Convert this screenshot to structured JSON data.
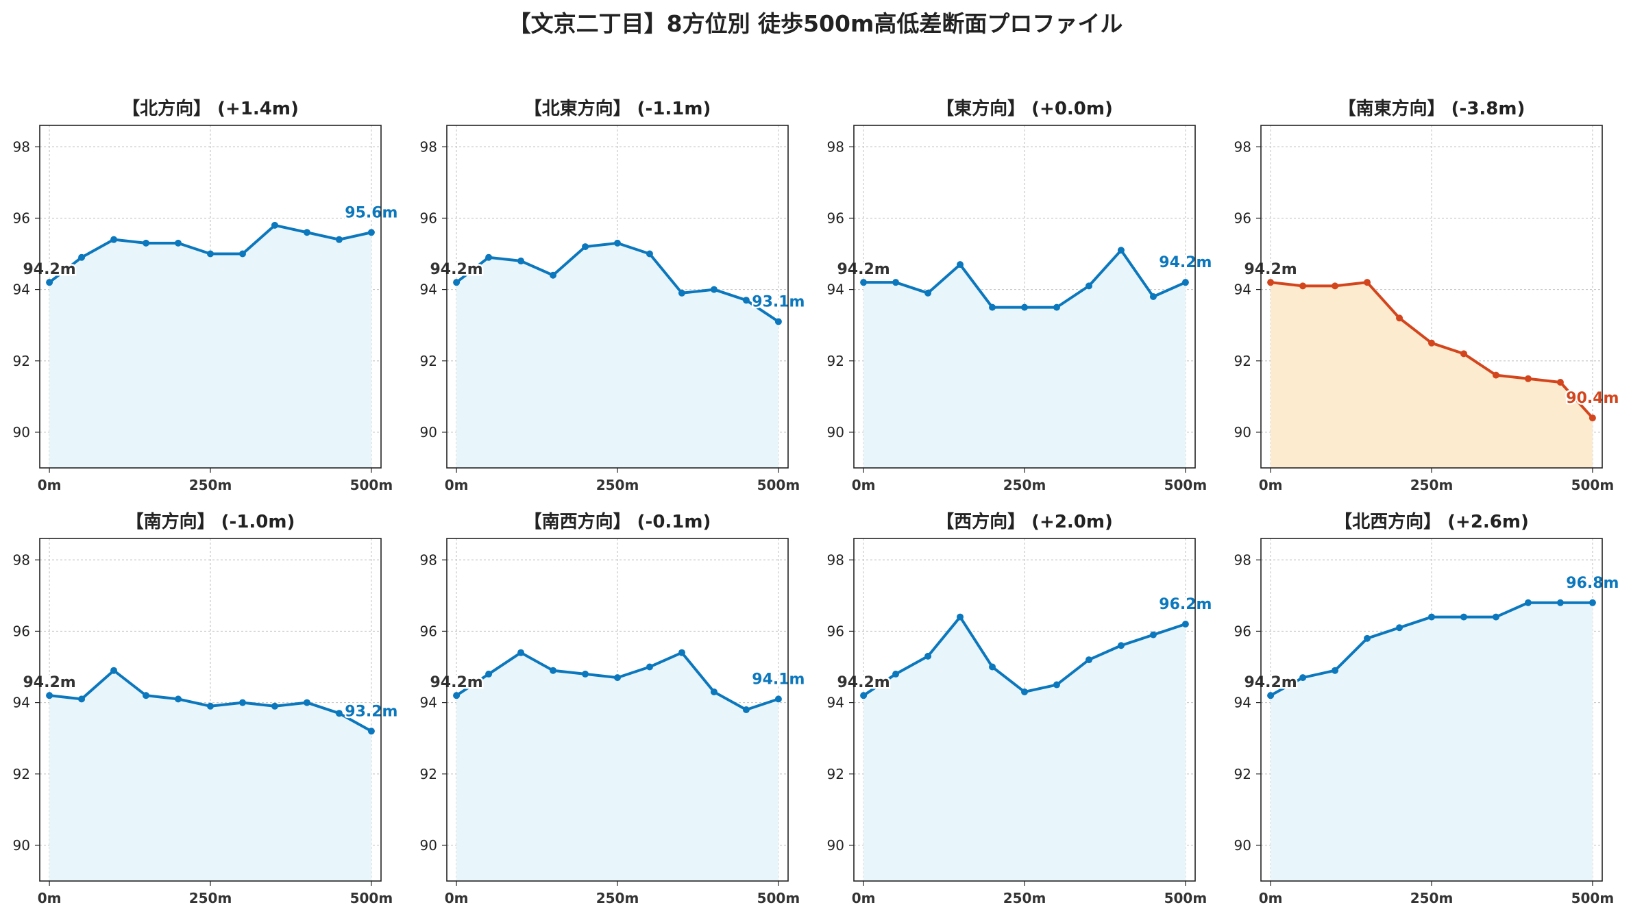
{
  "figure": {
    "title": "【文京二丁目】8方位別 徒歩500m高低差断面プロファイル"
  },
  "colors": {
    "rise_line": "#0b77bd",
    "rise_fill": "#e8f6fb",
    "fall_line": "#d3451c",
    "fall_fill": "#fdebd0",
    "start_label": "#333333",
    "grid": "#c9c9c9"
  },
  "chart_data": [
    {
      "type": "area",
      "title": "【北方向】 (+1.4m)",
      "x": [
        0,
        50,
        100,
        150,
        200,
        250,
        300,
        350,
        400,
        450,
        500
      ],
      "values": [
        94.2,
        94.9,
        95.4,
        95.3,
        95.3,
        95.0,
        95.0,
        95.8,
        95.6,
        95.4,
        95.6
      ],
      "ylim": [
        89,
        98.6
      ],
      "xlim": [
        -15,
        515
      ],
      "yticks": [
        "90",
        "92",
        "94",
        "96",
        "98"
      ],
      "xticks": [
        "0m",
        "250m",
        "500m"
      ],
      "grid": true,
      "start_label": "94.2m",
      "end_label": "95.6m",
      "style": "rise"
    },
    {
      "type": "area",
      "title": "【北東方向】 (-1.1m)",
      "x": [
        0,
        50,
        100,
        150,
        200,
        250,
        300,
        350,
        400,
        450,
        500
      ],
      "values": [
        94.2,
        94.9,
        94.8,
        94.4,
        95.2,
        95.3,
        95.0,
        93.9,
        94.0,
        93.7,
        93.1
      ],
      "ylim": [
        89,
        98.6
      ],
      "xlim": [
        -15,
        515
      ],
      "yticks": [
        "90",
        "92",
        "94",
        "96",
        "98"
      ],
      "xticks": [
        "0m",
        "250m",
        "500m"
      ],
      "grid": true,
      "start_label": "94.2m",
      "end_label": "93.1m",
      "style": "rise"
    },
    {
      "type": "area",
      "title": "【東方向】 (+0.0m)",
      "x": [
        0,
        50,
        100,
        150,
        200,
        250,
        300,
        350,
        400,
        450,
        500
      ],
      "values": [
        94.2,
        94.2,
        93.9,
        94.7,
        93.5,
        93.5,
        93.5,
        94.1,
        95.1,
        93.8,
        94.2
      ],
      "ylim": [
        89,
        98.6
      ],
      "xlim": [
        -15,
        515
      ],
      "yticks": [
        "90",
        "92",
        "94",
        "96",
        "98"
      ],
      "xticks": [
        "0m",
        "250m",
        "500m"
      ],
      "grid": true,
      "start_label": "94.2m",
      "end_label": "94.2m",
      "style": "rise"
    },
    {
      "type": "area",
      "title": "【南東方向】 (-3.8m)",
      "x": [
        0,
        50,
        100,
        150,
        200,
        250,
        300,
        350,
        400,
        450,
        500
      ],
      "values": [
        94.2,
        94.1,
        94.1,
        94.2,
        93.2,
        92.5,
        92.2,
        91.6,
        91.5,
        91.4,
        90.4
      ],
      "ylim": [
        89,
        98.6
      ],
      "xlim": [
        -15,
        515
      ],
      "yticks": [
        "90",
        "92",
        "94",
        "96",
        "98"
      ],
      "xticks": [
        "0m",
        "250m",
        "500m"
      ],
      "grid": true,
      "start_label": "94.2m",
      "end_label": "90.4m",
      "style": "fall"
    },
    {
      "type": "area",
      "title": "【南方向】 (-1.0m)",
      "x": [
        0,
        50,
        100,
        150,
        200,
        250,
        300,
        350,
        400,
        450,
        500
      ],
      "values": [
        94.2,
        94.1,
        94.9,
        94.2,
        94.1,
        93.9,
        94.0,
        93.9,
        94.0,
        93.7,
        93.2
      ],
      "ylim": [
        89,
        98.6
      ],
      "xlim": [
        -15,
        515
      ],
      "yticks": [
        "90",
        "92",
        "94",
        "96",
        "98"
      ],
      "xticks": [
        "0m",
        "250m",
        "500m"
      ],
      "grid": true,
      "start_label": "94.2m",
      "end_label": "93.2m",
      "style": "rise"
    },
    {
      "type": "area",
      "title": "【南西方向】 (-0.1m)",
      "x": [
        0,
        50,
        100,
        150,
        200,
        250,
        300,
        350,
        400,
        450,
        500
      ],
      "values": [
        94.2,
        94.8,
        95.4,
        94.9,
        94.8,
        94.7,
        95.0,
        95.4,
        94.3,
        93.8,
        94.1
      ],
      "ylim": [
        89,
        98.6
      ],
      "xlim": [
        -15,
        515
      ],
      "yticks": [
        "90",
        "92",
        "94",
        "96",
        "98"
      ],
      "xticks": [
        "0m",
        "250m",
        "500m"
      ],
      "grid": true,
      "start_label": "94.2m",
      "end_label": "94.1m",
      "style": "rise"
    },
    {
      "type": "area",
      "title": "【西方向】 (+2.0m)",
      "x": [
        0,
        50,
        100,
        150,
        200,
        250,
        300,
        350,
        400,
        450,
        500
      ],
      "values": [
        94.2,
        94.8,
        95.3,
        96.4,
        95.0,
        94.3,
        94.5,
        95.2,
        95.6,
        95.9,
        96.2
      ],
      "ylim": [
        89,
        98.6
      ],
      "xlim": [
        -15,
        515
      ],
      "yticks": [
        "90",
        "92",
        "94",
        "96",
        "98"
      ],
      "xticks": [
        "0m",
        "250m",
        "500m"
      ],
      "grid": true,
      "start_label": "94.2m",
      "end_label": "96.2m",
      "style": "rise"
    },
    {
      "type": "area",
      "title": "【北西方向】 (+2.6m)",
      "x": [
        0,
        50,
        100,
        150,
        200,
        250,
        300,
        350,
        400,
        450,
        500
      ],
      "values": [
        94.2,
        94.7,
        94.9,
        95.8,
        96.1,
        96.4,
        96.4,
        96.4,
        96.8,
        96.8,
        96.8
      ],
      "ylim": [
        89,
        98.6
      ],
      "xlim": [
        -15,
        515
      ],
      "yticks": [
        "90",
        "92",
        "94",
        "96",
        "98"
      ],
      "xticks": [
        "0m",
        "250m",
        "500m"
      ],
      "grid": true,
      "start_label": "94.2m",
      "end_label": "96.8m",
      "style": "rise"
    }
  ]
}
